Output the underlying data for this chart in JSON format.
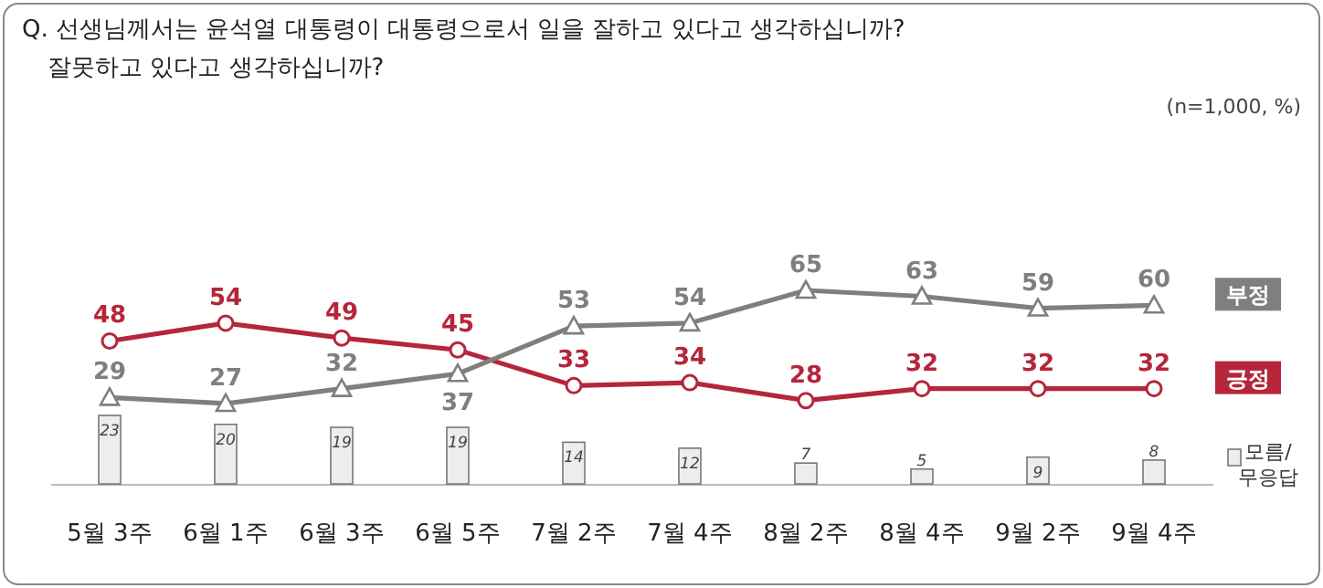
{
  "chart_data": {
    "type": "line",
    "title": "Q. 선생님께서는 윤석열 대통령이 대통령으로서 일을 잘하고 있다고 생각하십니까? 잘못하고 있다고 생각하십니까?",
    "annotations": [
      "(n=1,000, %)"
    ],
    "categories": [
      "5월 3주",
      "6월 1주",
      "6월 3주",
      "6월 5주",
      "7월 2주",
      "7월 4주",
      "8월 2주",
      "8월 4주",
      "9월 2주",
      "9월 4주"
    ],
    "data_labels": true,
    "series": [
      {
        "name": "긍정",
        "color": "#b5263a",
        "marker": "circle",
        "values": [
          48,
          54,
          49,
          45,
          33,
          34,
          28,
          32,
          32,
          32
        ]
      },
      {
        "name": "부정",
        "color": "#7f7f7f",
        "marker": "triangle",
        "values": [
          29,
          27,
          32,
          37,
          53,
          54,
          65,
          63,
          59,
          60
        ]
      },
      {
        "name": "모름/무응답",
        "type": "bar",
        "color": "#ededed",
        "values": [
          23,
          20,
          19,
          19,
          14,
          12,
          7,
          5,
          9,
          8
        ]
      }
    ]
  }
}
